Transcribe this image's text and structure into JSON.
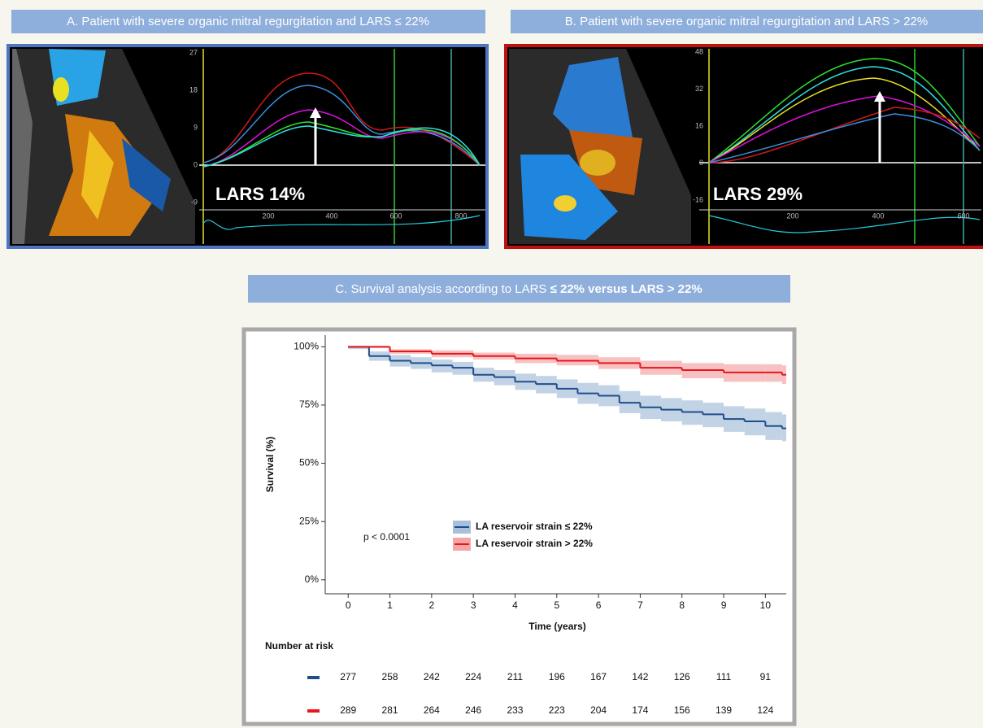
{
  "panels": [
    {
      "title": "A. Patient with severe organic mitral regurgitation and LARS ≤ 22%",
      "label": "LARS 14%",
      "y_ticks": [
        27,
        18,
        9,
        0,
        -9
      ],
      "x_ticks": [
        200,
        400,
        600,
        800
      ]
    },
    {
      "title": "B. Patient with severe organic mitral regurgitation and LARS > 22%",
      "label": "LARS 29%",
      "y_ticks": [
        48,
        32,
        16,
        0,
        -16
      ],
      "x_ticks": [
        200,
        400,
        600
      ]
    }
  ],
  "chart_title": {
    "text": "C. Survival analysis according to LARS ",
    "bold": "≤ 22% versus LARS > 22%"
  },
  "chart_data": {
    "type": "step",
    "x_label": "Time (years)",
    "y_label": "Survival (%)",
    "annotation": "p < 0.0001",
    "xlim": [
      -0.55,
      10.5
    ],
    "ylim": [
      -6,
      105
    ],
    "xticks": [
      0,
      1,
      2,
      3,
      4,
      5,
      6,
      7,
      8,
      9,
      10
    ],
    "yticks": [
      {
        "value": 0,
        "label": "0%"
      },
      {
        "value": 25,
        "label": "25%"
      },
      {
        "value": 50,
        "label": "50%"
      },
      {
        "value": 75,
        "label": "75%"
      },
      {
        "value": 100,
        "label": "100%"
      }
    ],
    "series": [
      {
        "name": "LA reservoir strain ≤ 22%",
        "color": "#1f4e8c",
        "band_color": "#a9c0dc",
        "x": [
          0,
          0.5,
          1,
          1.5,
          2,
          2.5,
          3,
          3.5,
          4,
          4.5,
          5,
          5.5,
          6,
          6.5,
          7,
          7.5,
          8,
          8.5,
          9,
          9.5,
          10,
          10.4
        ],
        "values": [
          100,
          96,
          94,
          93,
          92,
          91,
          88,
          87,
          85,
          84,
          82,
          80,
          79,
          76,
          74,
          73,
          72,
          71,
          69,
          68,
          66,
          65
        ],
        "lower": [
          99,
          94,
          91.5,
          90.5,
          89,
          88,
          85,
          83.5,
          81.5,
          80,
          78,
          75.5,
          74.5,
          71.5,
          69,
          68,
          66.5,
          65.5,
          63.5,
          62,
          60,
          59.5
        ],
        "upper": [
          100,
          98,
          96.5,
          95.5,
          94.5,
          93.5,
          91,
          90,
          88.5,
          87.5,
          86,
          84.5,
          83.5,
          81,
          79,
          78,
          77,
          76,
          74.5,
          73.5,
          72,
          71
        ]
      },
      {
        "name": "LA reservoir strain > 22%",
        "color": "#e8161b",
        "band_color": "#f4a6a6",
        "x": [
          0,
          1,
          2,
          3,
          4,
          5,
          6,
          7,
          8,
          9,
          10,
          10.4
        ],
        "values": [
          100,
          98,
          97,
          96,
          95,
          94,
          93,
          91,
          90,
          89,
          89,
          88
        ],
        "lower": [
          99.5,
          97,
          95.5,
          94.5,
          93,
          92,
          90.5,
          88,
          86.5,
          85,
          85,
          84
        ],
        "upper": [
          100,
          99,
          98.5,
          97.5,
          97,
          96.5,
          95.5,
          94,
          93,
          92.5,
          92.5,
          92
        ]
      }
    ],
    "risk_table": {
      "title": "Number at risk",
      "rows": [
        {
          "color": "#1f4e8c",
          "values": [
            277,
            258,
            242,
            224,
            211,
            196,
            167,
            142,
            126,
            111,
            91
          ]
        },
        {
          "color": "#e8161b",
          "values": [
            289,
            281,
            264,
            246,
            233,
            223,
            204,
            174,
            156,
            139,
            124
          ]
        }
      ]
    }
  }
}
